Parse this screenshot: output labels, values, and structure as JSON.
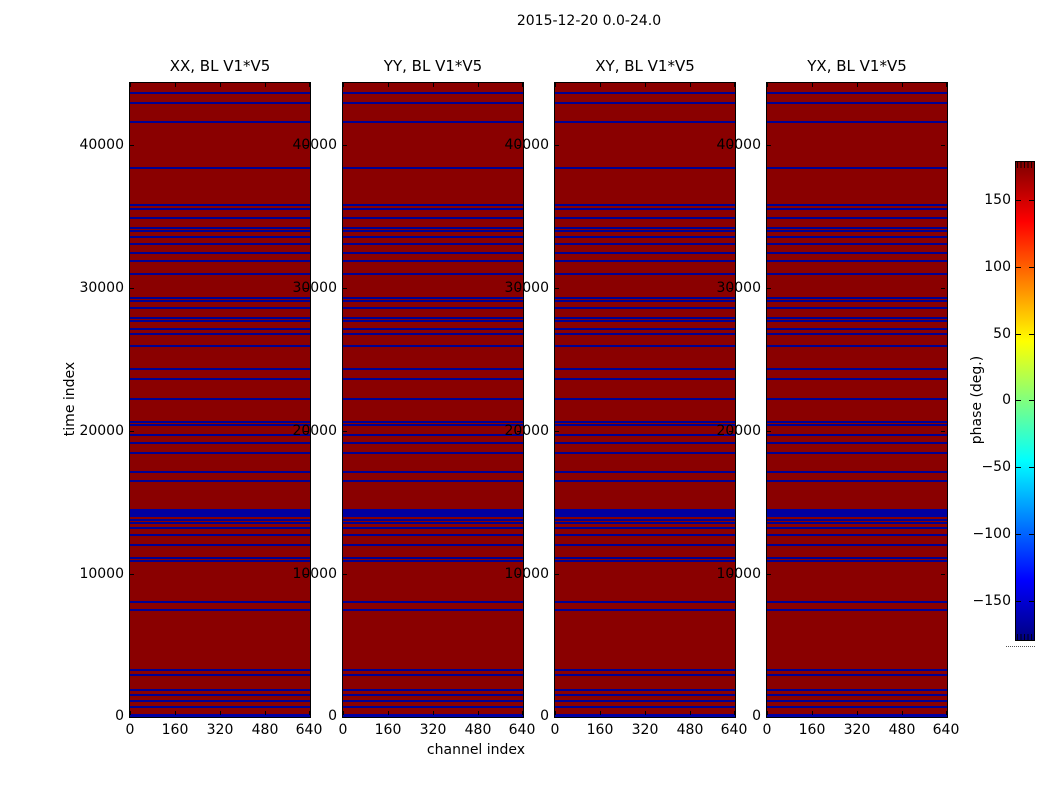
{
  "figure": {
    "suptitle": "2015-12-20 0.0-24.0"
  },
  "colors": {
    "background": "#ffffff",
    "axis": "#000000",
    "value_high_red": "#8a0000",
    "flag_blue": "#000092",
    "band_blue": "#0000a0",
    "jet_stops": [
      "#000080",
      "#0000ff",
      "#00ffff",
      "#ffff00",
      "#ff0000",
      "#800000"
    ]
  },
  "chart_data": {
    "type": "heatmap",
    "title": "2015-12-20 0.0-24.0",
    "panels": [
      {
        "title": "XX, BL V1*V5"
      },
      {
        "title": "YY, BL V1*V5"
      },
      {
        "title": "XY, BL V1*V5"
      },
      {
        "title": "YX, BL V1*V5"
      }
    ],
    "x_axis": {
      "label": "channel index",
      "range": [
        0,
        640
      ],
      "ticks": [
        0,
        160,
        320,
        480,
        640
      ]
    },
    "y_axis": {
      "label": "time index",
      "range": [
        0,
        44300
      ],
      "ticks": [
        0,
        10000,
        20000,
        30000,
        40000
      ]
    },
    "colorbar": {
      "label": "phase (deg.)",
      "range": [
        -180,
        179
      ],
      "ticks": [
        150,
        100,
        50,
        0,
        -50,
        -100,
        -150
      ],
      "colormap": "jet"
    },
    "value_summary": "phase ~ +180 deg (dark red) everywhere except flagged time rows ~ -180 deg (navy); identical in all four panels",
    "flagged_time_rows": [
      43600,
      42900,
      41580,
      38370,
      35750,
      35510,
      34880,
      34150,
      33970,
      33550,
      33060,
      32440,
      31880,
      30970,
      29300,
      29090,
      28600,
      27900,
      27690,
      27140,
      26790,
      25950,
      24350,
      23650,
      22250,
      20650,
      20440,
      19740,
      19180,
      18420,
      17090,
      16460,
      13740,
      13530,
      13180,
      12700,
      12000,
      11090,
      10880,
      8020,
      7460,
      3280,
      2930,
      1880,
      1530,
      1120,
      700
    ],
    "flagged_time_bands": [
      [
        14000,
        14520
      ],
      [
        0,
        200
      ]
    ]
  }
}
